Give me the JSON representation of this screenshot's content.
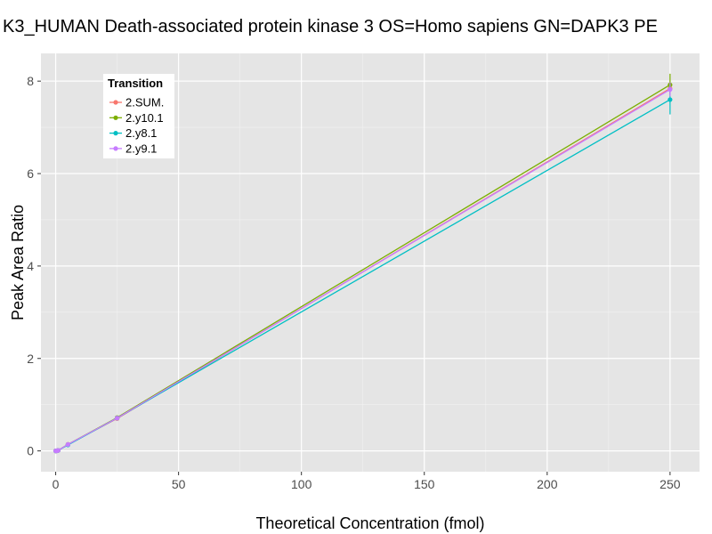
{
  "chart_data": {
    "type": "line",
    "title": "K3_HUMAN Death-associated protein kinase 3 OS=Homo sapiens GN=DAPK3 PE",
    "xlabel": "Theoretical Concentration (fmol)",
    "ylabel": "Peak Area Ratio",
    "xlim": [
      -6,
      262
    ],
    "ylim": [
      -0.45,
      8.6
    ],
    "xticks": [
      0,
      50,
      100,
      150,
      200,
      250
    ],
    "yticks": [
      0,
      2,
      4,
      6,
      8
    ],
    "grid": true,
    "legend": {
      "title": "Transition",
      "position": "top-left"
    },
    "series": [
      {
        "name": "2.SUM.",
        "color": "#F8766D",
        "x": [
          0,
          0.5,
          1,
          5,
          25,
          250
        ],
        "y": [
          0,
          0.003,
          0.01,
          0.14,
          0.7,
          7.84
        ],
        "err": [
          0,
          0,
          0,
          0,
          0.04,
          0.1
        ]
      },
      {
        "name": "2.y10.1",
        "color": "#7CAE00",
        "x": [
          0,
          0.5,
          1,
          5,
          25,
          250
        ],
        "y": [
          0,
          0.004,
          0.01,
          0.14,
          0.72,
          7.92
        ],
        "err": [
          0,
          0,
          0,
          0,
          0.03,
          0.24
        ]
      },
      {
        "name": "2.y8.1",
        "color": "#00BFC4",
        "x": [
          0,
          0.5,
          1,
          5,
          25,
          250
        ],
        "y": [
          0,
          0.003,
          0.01,
          0.13,
          0.71,
          7.6
        ],
        "err": [
          0,
          0,
          0,
          0,
          0.03,
          0.32
        ]
      },
      {
        "name": "2.y9.1",
        "color": "#C77CFF",
        "x": [
          0,
          0.5,
          1,
          5,
          25,
          250
        ],
        "y": [
          0,
          0.003,
          0.01,
          0.14,
          0.71,
          7.82
        ],
        "err": [
          0,
          0,
          0,
          0,
          0.03,
          0.15
        ]
      }
    ]
  }
}
